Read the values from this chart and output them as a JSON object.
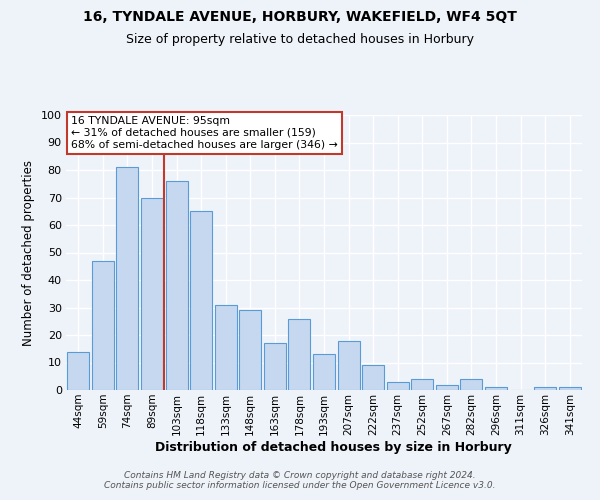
{
  "title": "16, TYNDALE AVENUE, HORBURY, WAKEFIELD, WF4 5QT",
  "subtitle": "Size of property relative to detached houses in Horbury",
  "xlabel": "Distribution of detached houses by size in Horbury",
  "ylabel": "Number of detached properties",
  "categories": [
    "44sqm",
    "59sqm",
    "74sqm",
    "89sqm",
    "103sqm",
    "118sqm",
    "133sqm",
    "148sqm",
    "163sqm",
    "178sqm",
    "193sqm",
    "207sqm",
    "222sqm",
    "237sqm",
    "252sqm",
    "267sqm",
    "282sqm",
    "296sqm",
    "311sqm",
    "326sqm",
    "341sqm"
  ],
  "values": [
    14,
    47,
    81,
    70,
    76,
    65,
    31,
    29,
    17,
    26,
    13,
    18,
    9,
    3,
    4,
    2,
    4,
    1,
    0,
    1,
    1
  ],
  "bar_color": "#c5d8ef",
  "bar_edge_color": "#5b9bd5",
  "vline_color": "#c0392b",
  "vline_pos": 3.5,
  "annotation_line1": "16 TYNDALE AVENUE: 95sqm",
  "annotation_line2": "← 31% of detached houses are smaller (159)",
  "annotation_line3": "68% of semi-detached houses are larger (346) →",
  "annotation_box_color": "#ffffff",
  "annotation_box_edge": "#c0392b",
  "footer_text": "Contains HM Land Registry data © Crown copyright and database right 2024.\nContains public sector information licensed under the Open Government Licence v3.0.",
  "ylim": [
    0,
    100
  ],
  "yticks": [
    0,
    10,
    20,
    30,
    40,
    50,
    60,
    70,
    80,
    90,
    100
  ],
  "background_color": "#eef2f9",
  "grid_color": "#ffffff",
  "title_fontsize": 10,
  "subtitle_fontsize": 9
}
